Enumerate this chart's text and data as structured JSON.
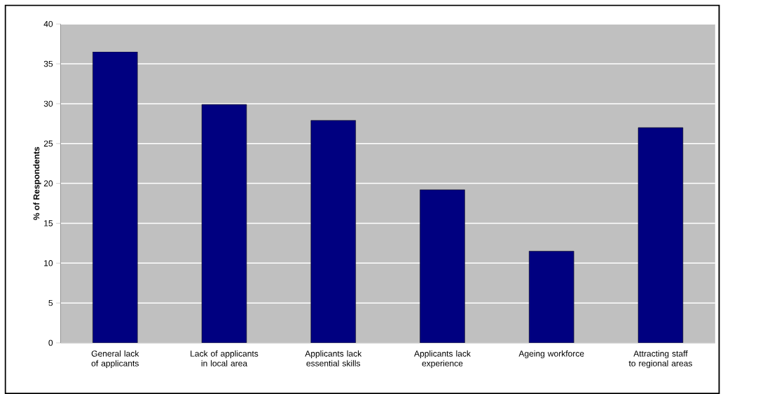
{
  "chart_data": {
    "type": "bar",
    "ylabel": "% of Respondents",
    "categories": [
      "General lack of applicants",
      "Lack of applicants in local area",
      "Applicants lack essential skills",
      "Applicants lack experience",
      "Ageing workforce",
      "Attracting staff to regional areas"
    ],
    "values": [
      36.5,
      29.9,
      27.9,
      19.2,
      11.5,
      27.0
    ],
    "color": "#000080",
    "ylim": [
      0,
      40
    ],
    "yticks": [
      0,
      5,
      10,
      15,
      20,
      25,
      30,
      35,
      40
    ],
    "grid": "y"
  }
}
